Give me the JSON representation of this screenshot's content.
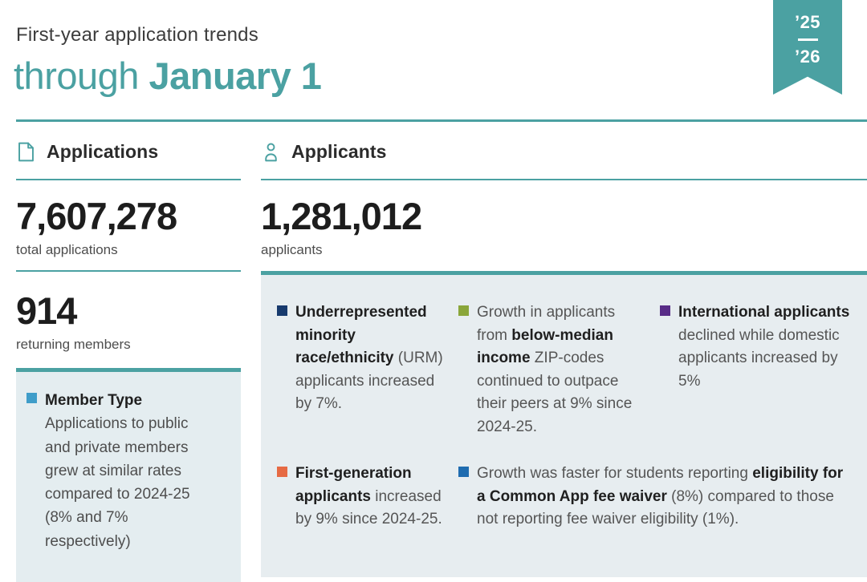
{
  "header": {
    "subtitle": "First-year application trends",
    "title_regular": "through ",
    "title_bold": "January 1",
    "ribbon": {
      "top": "’25",
      "bottom": "’26"
    }
  },
  "colors": {
    "accent_teal": "#4BA1A2",
    "left_box_bg": "#E4EDF0",
    "right_box_bg": "#E7EDF0"
  },
  "applications": {
    "section_label": "Applications",
    "icon": "document-icon",
    "stat1_value": "7,607,278",
    "stat1_label": "total applications",
    "stat2_value": "914",
    "stat2_label": "returning members",
    "member_box": {
      "bullet_color": "#3F9DC9",
      "title": "Member Type",
      "body": "Applications to public and private members grew at similar rates compared to 2024-25 (8% and 7% respectively)"
    }
  },
  "applicants": {
    "section_label": "Applicants",
    "icon": "person-icon",
    "stat_value": "1,281,012",
    "stat_label": "applicants",
    "insights": [
      {
        "bullet_color": "#173A6D",
        "segments": [
          {
            "text": "Underrepresented minority race/ethnicity",
            "bold": true
          },
          {
            "text": " (URM) applicants increased by 7%.",
            "bold": false
          }
        ]
      },
      {
        "bullet_color": "#8AA63A",
        "segments": [
          {
            "text": "Growth in applicants from ",
            "bold": false
          },
          {
            "text": "below-median income",
            "bold": true
          },
          {
            "text": " ZIP-codes continued to outpace their peers at 9% since 2024-25.",
            "bold": false
          }
        ]
      },
      {
        "bullet_color": "#582C87",
        "segments": [
          {
            "text": "International applicants",
            "bold": true
          },
          {
            "text": " declined while domestic applicants increased by 5%",
            "bold": false
          }
        ]
      },
      {
        "bullet_color": "#E66A44",
        "segments": [
          {
            "text": "First-generation applicants",
            "bold": true
          },
          {
            "text": " increased by 9% since 2024-25.",
            "bold": false
          }
        ]
      },
      {
        "bullet_color": "#1F6CB0",
        "segments": [
          {
            "text": "Growth was faster for students reporting ",
            "bold": false
          },
          {
            "text": "eligibility for a Common App fee waiver",
            "bold": true
          },
          {
            "text": " (8%) compared to those not reporting fee waiver eligibility (1%).",
            "bold": false
          }
        ]
      }
    ]
  }
}
